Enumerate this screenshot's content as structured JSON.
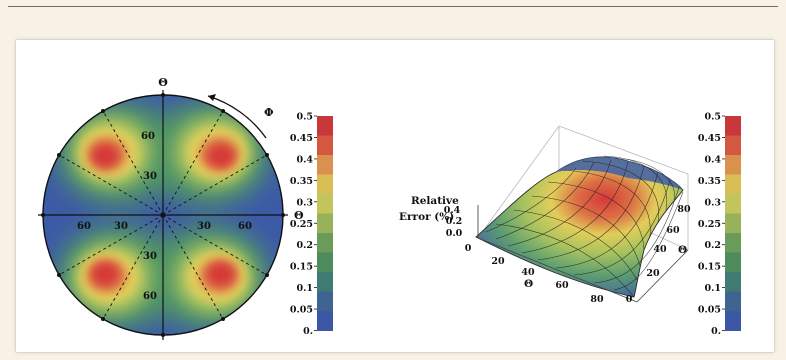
{
  "polar_plot": {
    "axis_top": "Θ",
    "axis_right": "Θ",
    "arrow_label": "Φ",
    "radial_ticks": [
      "60",
      "30",
      "30",
      "60",
      "60",
      "30",
      "30",
      "60"
    ]
  },
  "surface_plot": {
    "z_label_line1": "Relative",
    "z_label_line2": "Error (%)",
    "z_ticks": [
      "0.4",
      "0.2",
      "0.0"
    ],
    "x_label": "Θ",
    "x_ticks": [
      "0",
      "20",
      "40",
      "60",
      "80"
    ],
    "y_label": "Θ",
    "y_ticks": [
      "0",
      "20",
      "40",
      "60",
      "80"
    ]
  },
  "colorbar_ticks": [
    "0.5",
    "0.45",
    "0.4",
    "0.35",
    "0.3",
    "0.25",
    "0.2",
    "0.15",
    "0.1",
    "0.05",
    "0."
  ],
  "colorbar_colors": [
    "#c8373b",
    "#d4573f",
    "#d9914d",
    "#d9bd55",
    "#c3c45c",
    "#98b25b",
    "#6b9b58",
    "#4d8a5c",
    "#3f7b72",
    "#3f6490",
    "#3c57a4"
  ]
}
